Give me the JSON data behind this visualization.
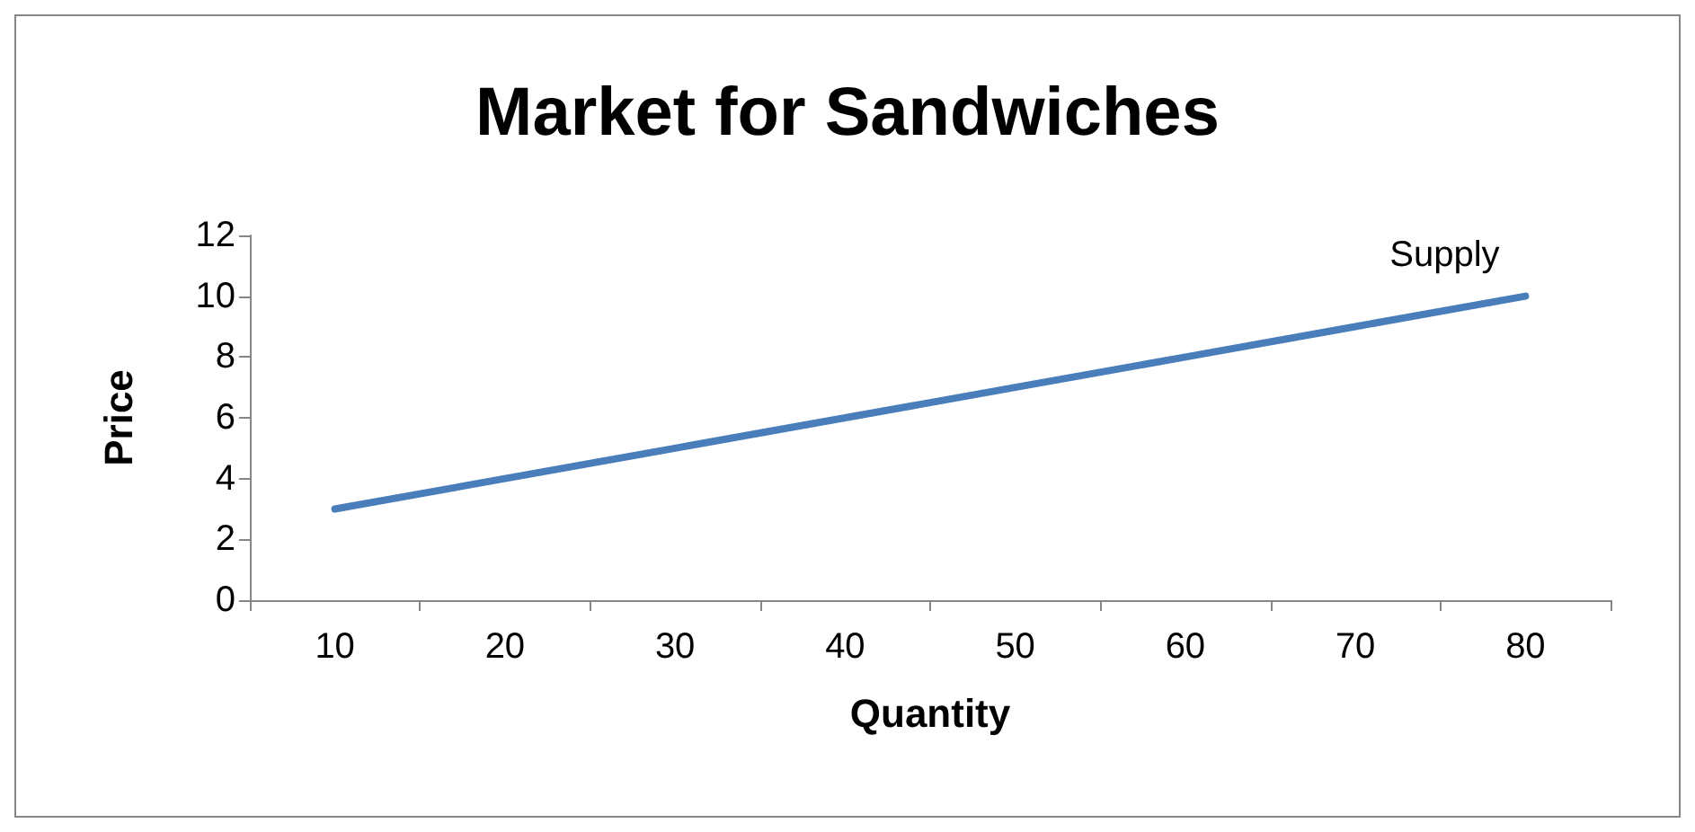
{
  "chart_data": {
    "type": "line",
    "title": "Market for Sandwiches",
    "xlabel": "Quantity",
    "ylabel": "Price",
    "categories": [
      "10",
      "20",
      "30",
      "40",
      "50",
      "60",
      "70",
      "80"
    ],
    "series": [
      {
        "name": "Supply",
        "color": "#4a7ebb",
        "values": [
          3,
          4,
          5,
          6,
          7,
          8,
          9,
          10
        ]
      }
    ],
    "ylim": [
      0,
      12
    ],
    "yticks": [
      0,
      2,
      4,
      6,
      8,
      10,
      12
    ],
    "grid": false,
    "legend": false,
    "marker": "none",
    "line_style": "solid"
  }
}
